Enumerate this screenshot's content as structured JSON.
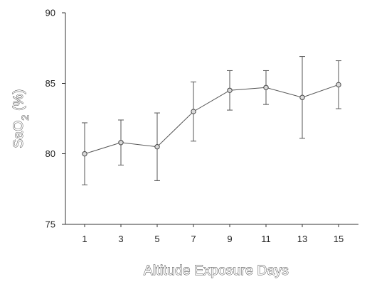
{
  "chart_data": {
    "type": "line",
    "title": "",
    "xlabel": "Altitude Exposure Days",
    "ylabel_main": "SaO",
    "ylabel_sub": "2",
    "ylabel_tail": " (%)",
    "x": [
      1,
      3,
      5,
      7,
      9,
      11,
      13,
      15
    ],
    "y_ticks": [
      75,
      80,
      85,
      90
    ],
    "ylim": [
      75,
      90
    ],
    "grid": false,
    "series": [
      {
        "values": [
          80.0,
          80.8,
          80.5,
          83.0,
          84.5,
          84.7,
          84.0,
          84.9
        ],
        "error": [
          2.2,
          1.6,
          2.4,
          2.1,
          1.4,
          1.2,
          2.9,
          1.7
        ]
      }
    ]
  }
}
